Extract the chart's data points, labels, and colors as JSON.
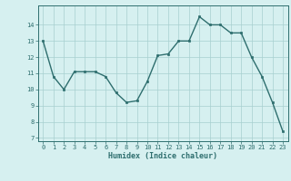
{
  "x": [
    0,
    1,
    2,
    3,
    4,
    5,
    6,
    7,
    8,
    9,
    10,
    11,
    12,
    13,
    14,
    15,
    16,
    17,
    18,
    19,
    20,
    21,
    22,
    23
  ],
  "y": [
    13.0,
    10.8,
    10.0,
    11.1,
    11.1,
    11.1,
    10.8,
    9.8,
    9.2,
    9.3,
    10.5,
    12.1,
    12.2,
    13.0,
    13.0,
    14.5,
    14.0,
    14.0,
    13.5,
    13.5,
    12.0,
    10.8,
    9.2,
    7.4
  ],
  "xlim": [
    -0.5,
    23.5
  ],
  "ylim": [
    6.8,
    15.2
  ],
  "yticks": [
    7,
    8,
    9,
    10,
    11,
    12,
    13,
    14
  ],
  "xticks": [
    0,
    1,
    2,
    3,
    4,
    5,
    6,
    7,
    8,
    9,
    10,
    11,
    12,
    13,
    14,
    15,
    16,
    17,
    18,
    19,
    20,
    21,
    22,
    23
  ],
  "xlabel": "Humidex (Indice chaleur)",
  "line_color": "#2e6e6e",
  "marker_color": "#2e6e6e",
  "bg_color": "#d6f0f0",
  "grid_color": "#a8d0d0"
}
